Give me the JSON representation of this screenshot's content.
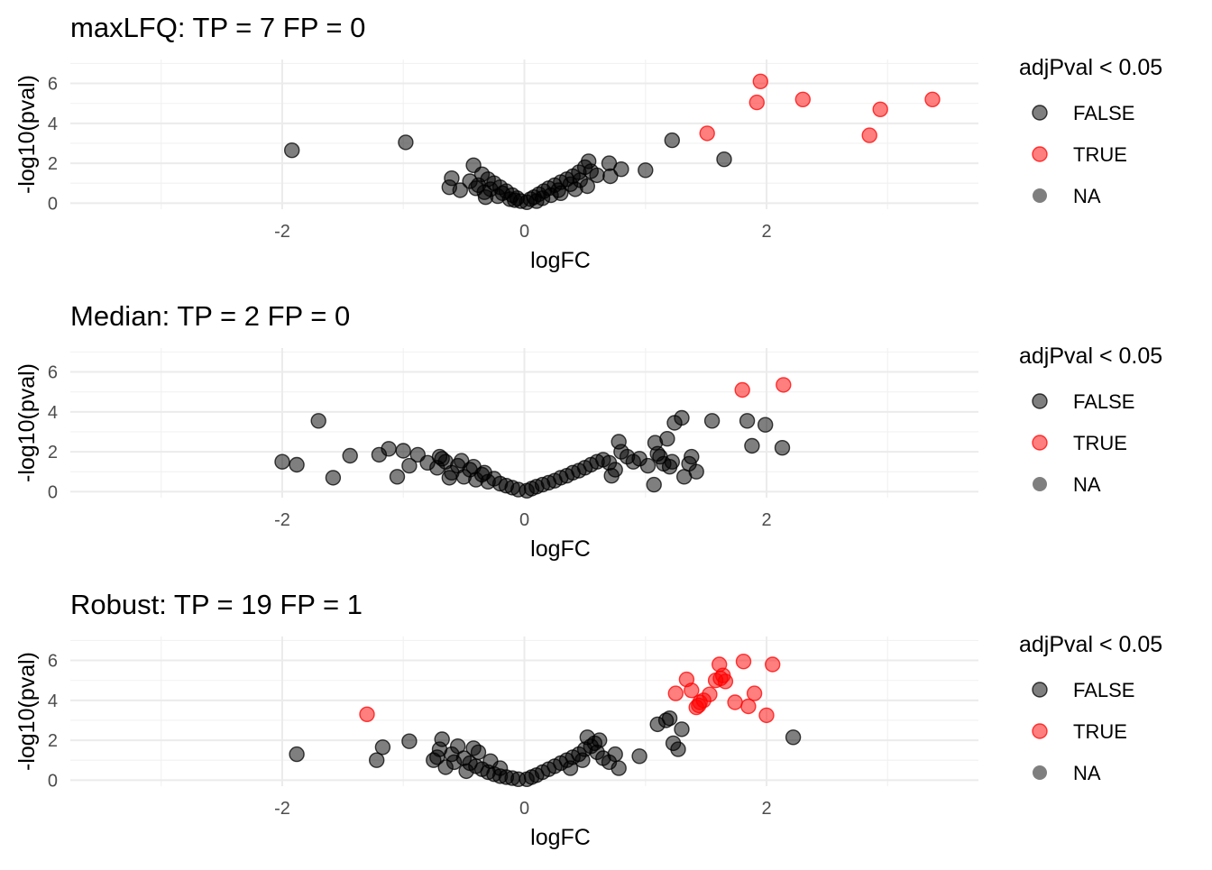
{
  "colors": {
    "false_point": "#000000",
    "true_point": "#ff0000",
    "na_point": "#000000",
    "grid": "#ebebeb",
    "tick_text": "#4d4d4d"
  },
  "legend": {
    "title": "adjPval < 0.05",
    "entries": [
      "FALSE",
      "TRUE",
      "NA"
    ]
  },
  "chart_data": [
    {
      "type": "scatter",
      "title": "maxLFQ: TP = 7 FP = 0",
      "xlabel": "logFC",
      "ylabel": "-log10(pval)",
      "xlim": [
        -3.75,
        3.75
      ],
      "ylim": [
        -0.3,
        7.2
      ],
      "x_ticks": [
        -2,
        0,
        2
      ],
      "y_ticks": [
        0,
        2,
        4,
        6
      ],
      "grid": true,
      "legend_position": "right",
      "series": [
        {
          "name": "FALSE",
          "color": "#000000",
          "points": [
            [
              -1.92,
              2.65
            ],
            [
              -0.98,
              3.05
            ],
            [
              -0.42,
              1.9
            ],
            [
              -0.6,
              1.25
            ],
            [
              -0.62,
              0.8
            ],
            [
              -0.53,
              0.65
            ],
            [
              -0.35,
              1.45
            ],
            [
              -0.3,
              1.2
            ],
            [
              -0.25,
              1.0
            ],
            [
              -0.2,
              0.8
            ],
            [
              -0.15,
              0.6
            ],
            [
              -0.1,
              0.4
            ],
            [
              -0.06,
              0.25
            ],
            [
              -0.03,
              0.1
            ],
            [
              -0.38,
              0.9
            ],
            [
              -0.33,
              0.55
            ],
            [
              -0.28,
              0.7
            ],
            [
              -0.22,
              0.35
            ],
            [
              -0.45,
              1.1
            ],
            [
              -0.4,
              0.75
            ],
            [
              -0.18,
              0.5
            ],
            [
              -0.12,
              0.2
            ],
            [
              -0.08,
              0.15
            ],
            [
              -0.32,
              0.3
            ],
            [
              0.02,
              0.05
            ],
            [
              0.05,
              0.2
            ],
            [
              0.08,
              0.3
            ],
            [
              0.12,
              0.45
            ],
            [
              0.16,
              0.6
            ],
            [
              0.2,
              0.75
            ],
            [
              0.25,
              0.9
            ],
            [
              0.3,
              1.05
            ],
            [
              0.35,
              1.2
            ],
            [
              0.4,
              1.35
            ],
            [
              0.45,
              1.55
            ],
            [
              0.5,
              1.8
            ],
            [
              0.53,
              2.1
            ],
            [
              0.55,
              1.6
            ],
            [
              0.52,
              0.85
            ],
            [
              0.42,
              0.7
            ],
            [
              0.3,
              0.5
            ],
            [
              0.22,
              0.4
            ],
            [
              0.15,
              0.25
            ],
            [
              0.1,
              0.1
            ],
            [
              0.38,
              0.95
            ],
            [
              0.28,
              0.65
            ],
            [
              0.46,
              1.15
            ],
            [
              0.6,
              1.4
            ],
            [
              0.7,
              2.0
            ],
            [
              0.71,
              1.35
            ],
            [
              0.8,
              1.7
            ],
            [
              1.0,
              1.65
            ],
            [
              1.22,
              3.15
            ],
            [
              1.65,
              2.2
            ]
          ]
        },
        {
          "name": "TRUE",
          "color": "#ff0000",
          "points": [
            [
              1.51,
              3.5
            ],
            [
              1.92,
              5.05
            ],
            [
              1.95,
              6.1
            ],
            [
              2.3,
              5.2
            ],
            [
              2.85,
              3.4
            ],
            [
              2.94,
              4.7
            ],
            [
              3.37,
              5.2
            ]
          ]
        }
      ]
    },
    {
      "type": "scatter",
      "title": "Median: TP = 2 FP = 0",
      "xlabel": "logFC",
      "ylabel": "-log10(pval)",
      "xlim": [
        -3.75,
        3.75
      ],
      "ylim": [
        -0.3,
        7.2
      ],
      "x_ticks": [
        -2,
        0,
        2
      ],
      "y_ticks": [
        0,
        2,
        4,
        6
      ],
      "grid": true,
      "legend_position": "right",
      "series": [
        {
          "name": "FALSE",
          "color": "#000000",
          "points": [
            [
              -2.0,
              1.5
            ],
            [
              -1.88,
              1.35
            ],
            [
              -1.7,
              3.55
            ],
            [
              -1.58,
              0.7
            ],
            [
              -1.44,
              1.8
            ],
            [
              -1.2,
              1.85
            ],
            [
              -1.12,
              2.15
            ],
            [
              -1.05,
              0.75
            ],
            [
              -1.0,
              2.05
            ],
            [
              -0.95,
              1.3
            ],
            [
              -0.88,
              1.85
            ],
            [
              -0.8,
              1.45
            ],
            [
              -0.7,
              1.75
            ],
            [
              -0.72,
              1.2
            ],
            [
              -0.65,
              1.5
            ],
            [
              -0.6,
              0.95
            ],
            [
              -0.55,
              1.3
            ],
            [
              -0.5,
              0.75
            ],
            [
              -0.45,
              1.1
            ],
            [
              -0.4,
              0.6
            ],
            [
              -0.35,
              0.85
            ],
            [
              -0.3,
              0.5
            ],
            [
              -0.25,
              0.65
            ],
            [
              -0.2,
              0.4
            ],
            [
              -0.15,
              0.3
            ],
            [
              -0.1,
              0.2
            ],
            [
              -0.05,
              0.1
            ],
            [
              -0.62,
              0.7
            ],
            [
              -0.52,
              1.55
            ],
            [
              -0.42,
              1.25
            ],
            [
              -0.33,
              0.95
            ],
            [
              -0.68,
              1.65
            ],
            [
              0.02,
              0.05
            ],
            [
              0.06,
              0.15
            ],
            [
              0.1,
              0.25
            ],
            [
              0.15,
              0.35
            ],
            [
              0.2,
              0.45
            ],
            [
              0.25,
              0.55
            ],
            [
              0.3,
              0.7
            ],
            [
              0.35,
              0.8
            ],
            [
              0.4,
              0.95
            ],
            [
              0.45,
              1.05
            ],
            [
              0.5,
              1.2
            ],
            [
              0.55,
              1.35
            ],
            [
              0.6,
              1.5
            ],
            [
              0.65,
              1.6
            ],
            [
              0.7,
              1.45
            ],
            [
              0.72,
              0.8
            ],
            [
              0.75,
              1.1
            ],
            [
              0.78,
              2.5
            ],
            [
              0.8,
              2.0
            ],
            [
              0.85,
              1.75
            ],
            [
              0.9,
              1.5
            ],
            [
              0.95,
              1.65
            ],
            [
              1.02,
              1.3
            ],
            [
              1.08,
              2.45
            ],
            [
              1.1,
              1.9
            ],
            [
              1.12,
              1.75
            ],
            [
              1.15,
              1.4
            ],
            [
              1.18,
              2.65
            ],
            [
              1.2,
              1.25
            ],
            [
              1.22,
              1.5
            ],
            [
              1.24,
              3.45
            ],
            [
              1.3,
              3.7
            ],
            [
              1.32,
              0.75
            ],
            [
              1.36,
              1.4
            ],
            [
              1.38,
              1.75
            ],
            [
              1.42,
              1.0
            ],
            [
              1.55,
              3.55
            ],
            [
              1.07,
              0.35
            ],
            [
              1.84,
              3.55
            ],
            [
              1.88,
              2.3
            ],
            [
              1.99,
              3.35
            ],
            [
              2.13,
              2.2
            ]
          ]
        },
        {
          "name": "TRUE",
          "color": "#ff0000",
          "points": [
            [
              1.8,
              5.1
            ],
            [
              2.14,
              5.35
            ]
          ]
        }
      ]
    },
    {
      "type": "scatter",
      "title": "Robust: TP = 19 FP = 1",
      "xlabel": "logFC",
      "ylabel": "-log10(pval)",
      "xlim": [
        -3.75,
        3.75
      ],
      "ylim": [
        -0.3,
        7.2
      ],
      "x_ticks": [
        -2,
        0,
        2
      ],
      "y_ticks": [
        0,
        2,
        4,
        6
      ],
      "grid": true,
      "legend_position": "right",
      "series": [
        {
          "name": "FALSE",
          "color": "#000000",
          "points": [
            [
              -1.88,
              1.3
            ],
            [
              -1.22,
              1.0
            ],
            [
              -1.17,
              1.65
            ],
            [
              -0.95,
              1.95
            ],
            [
              -0.7,
              1.55
            ],
            [
              -0.68,
              2.05
            ],
            [
              -0.72,
              1.15
            ],
            [
              -0.75,
              1.0
            ],
            [
              -0.65,
              0.65
            ],
            [
              -0.6,
              1.3
            ],
            [
              -0.55,
              1.7
            ],
            [
              -0.5,
              1.1
            ],
            [
              -0.45,
              0.85
            ],
            [
              -0.4,
              0.7
            ],
            [
              -0.35,
              0.55
            ],
            [
              -0.3,
              0.4
            ],
            [
              -0.25,
              0.3
            ],
            [
              -0.2,
              0.2
            ],
            [
              -0.15,
              0.15
            ],
            [
              -0.1,
              0.1
            ],
            [
              -0.05,
              0.05
            ],
            [
              -0.48,
              0.45
            ],
            [
              -0.58,
              0.9
            ],
            [
              -0.38,
              1.4
            ],
            [
              -0.28,
              0.95
            ],
            [
              -0.2,
              0.6
            ],
            [
              -0.42,
              1.6
            ],
            [
              0.02,
              0.05
            ],
            [
              0.06,
              0.15
            ],
            [
              0.1,
              0.25
            ],
            [
              0.15,
              0.4
            ],
            [
              0.2,
              0.55
            ],
            [
              0.25,
              0.7
            ],
            [
              0.3,
              0.85
            ],
            [
              0.35,
              1.0
            ],
            [
              0.4,
              1.15
            ],
            [
              0.45,
              1.3
            ],
            [
              0.5,
              1.55
            ],
            [
              0.55,
              1.7
            ],
            [
              0.6,
              1.4
            ],
            [
              0.65,
              1.1
            ],
            [
              0.7,
              0.9
            ],
            [
              0.75,
              1.3
            ],
            [
              0.78,
              0.6
            ],
            [
              0.62,
              2.0
            ],
            [
              0.52,
              2.15
            ],
            [
              0.58,
              1.85
            ],
            [
              0.48,
              1.0
            ],
            [
              0.38,
              0.6
            ],
            [
              0.95,
              1.2
            ],
            [
              1.1,
              2.8
            ],
            [
              1.17,
              3.0
            ],
            [
              1.2,
              3.1
            ],
            [
              1.23,
              1.85
            ],
            [
              1.27,
              1.55
            ],
            [
              1.3,
              2.55
            ],
            [
              2.22,
              2.15
            ]
          ]
        },
        {
          "name": "TRUE",
          "color": "#ff0000",
          "points": [
            [
              -1.3,
              3.3
            ],
            [
              1.25,
              4.35
            ],
            [
              1.34,
              5.05
            ],
            [
              1.38,
              4.5
            ],
            [
              1.42,
              3.65
            ],
            [
              1.45,
              3.9
            ],
            [
              1.48,
              4.0
            ],
            [
              1.53,
              4.3
            ],
            [
              1.58,
              5.0
            ],
            [
              1.61,
              5.8
            ],
            [
              1.64,
              5.25
            ],
            [
              1.66,
              4.95
            ],
            [
              1.74,
              3.9
            ],
            [
              1.81,
              5.95
            ],
            [
              1.85,
              3.7
            ],
            [
              1.9,
              4.35
            ],
            [
              2.0,
              3.25
            ],
            [
              2.05,
              5.8
            ],
            [
              1.62,
              5.1
            ],
            [
              1.44,
              3.75
            ]
          ]
        }
      ]
    }
  ]
}
